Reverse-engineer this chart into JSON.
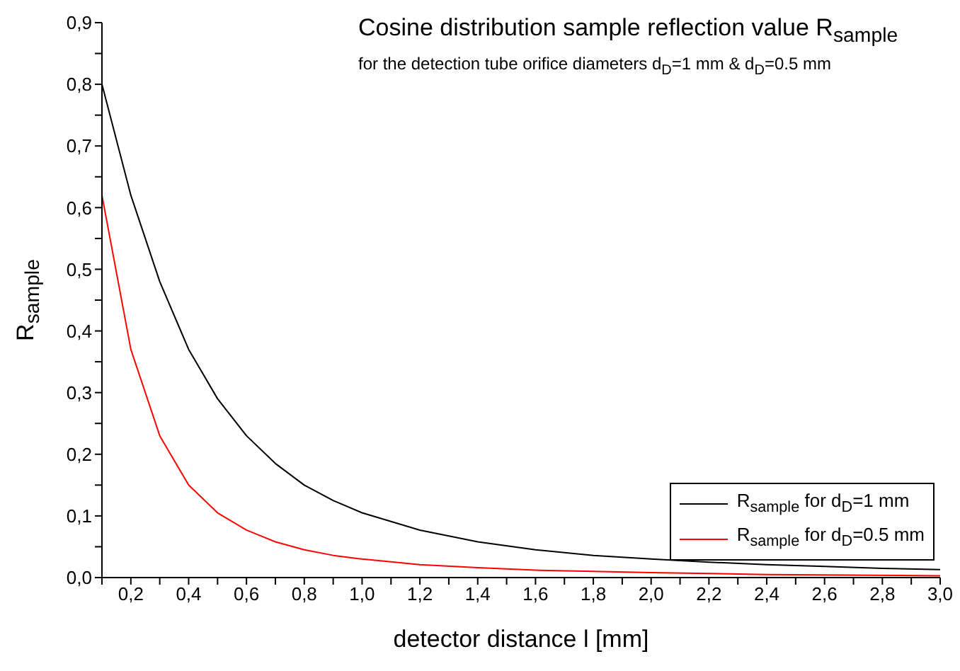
{
  "chart_data": {
    "type": "line",
    "title": "Cosine distribution sample reflection value R$_{sample}$",
    "subtitle": "for  the detection tube orifice diameters d$_{D}$=1 mm & d$_{D}$=0.5 mm",
    "xlabel": "detector distance l [mm]",
    "ylabel": "R$_{sample}$",
    "series": [
      {
        "name": "R$_{sample}$  for d$_{D}$=1 mm",
        "color": "#000000",
        "x": [
          0.1,
          0.2,
          0.3,
          0.4,
          0.5,
          0.6,
          0.7,
          0.8,
          0.9,
          1.0,
          1.2,
          1.4,
          1.6,
          1.8,
          2.0,
          2.2,
          2.4,
          2.6,
          2.8,
          3.0
        ],
        "values": [
          0.8,
          0.62,
          0.48,
          0.37,
          0.29,
          0.23,
          0.185,
          0.15,
          0.125,
          0.105,
          0.077,
          0.058,
          0.045,
          0.036,
          0.03,
          0.025,
          0.021,
          0.018,
          0.015,
          0.013
        ]
      },
      {
        "name": "R$_{sample}$  for d$_{D}$=0.5 mm",
        "color": "#ff0000",
        "x": [
          0.1,
          0.2,
          0.3,
          0.4,
          0.5,
          0.6,
          0.7,
          0.8,
          0.9,
          1.0,
          1.2,
          1.4,
          1.6,
          1.8,
          2.0,
          2.4,
          3.0
        ],
        "values": [
          0.62,
          0.37,
          0.23,
          0.15,
          0.105,
          0.077,
          0.058,
          0.045,
          0.036,
          0.03,
          0.021,
          0.016,
          0.012,
          0.01,
          0.008,
          0.005,
          0.003
        ]
      }
    ],
    "xlim": [
      0.1,
      3.0
    ],
    "xticks": [
      {
        "value": 0.1,
        "label": null
      },
      {
        "value": 0.2,
        "label": "0,2"
      },
      {
        "value": 0.3,
        "label": null
      },
      {
        "value": 0.4,
        "label": "0,4"
      },
      {
        "value": 0.5,
        "label": null
      },
      {
        "value": 0.6,
        "label": "0,6"
      },
      {
        "value": 0.7,
        "label": null
      },
      {
        "value": 0.8,
        "label": "0,8"
      },
      {
        "value": 0.9,
        "label": null
      },
      {
        "value": 1.0,
        "label": "1,0"
      },
      {
        "value": 1.1,
        "label": null
      },
      {
        "value": 1.2,
        "label": "1,2"
      },
      {
        "value": 1.3,
        "label": null
      },
      {
        "value": 1.4,
        "label": "1,4"
      },
      {
        "value": 1.5,
        "label": null
      },
      {
        "value": 1.6,
        "label": "1,6"
      },
      {
        "value": 1.7,
        "label": null
      },
      {
        "value": 1.8,
        "label": "1,8"
      },
      {
        "value": 1.9,
        "label": null
      },
      {
        "value": 2.0,
        "label": "2,0"
      },
      {
        "value": 2.1,
        "label": null
      },
      {
        "value": 2.2,
        "label": "2,2"
      },
      {
        "value": 2.3,
        "label": null
      },
      {
        "value": 2.4,
        "label": "2,4"
      },
      {
        "value": 2.5,
        "label": null
      },
      {
        "value": 2.6,
        "label": "2,6"
      },
      {
        "value": 2.7,
        "label": null
      },
      {
        "value": 2.8,
        "label": "2,8"
      },
      {
        "value": 2.9,
        "label": null
      },
      {
        "value": 3.0,
        "label": "3,0"
      }
    ],
    "ylim": [
      0,
      0.9
    ],
    "yticks": [
      {
        "value": 0,
        "label": "0,0"
      },
      {
        "value": 0.05,
        "label": null
      },
      {
        "value": 0.1,
        "label": "0,1"
      },
      {
        "value": 0.15,
        "label": null
      },
      {
        "value": 0.2,
        "label": "0,2"
      },
      {
        "value": 0.25,
        "label": null
      },
      {
        "value": 0.3,
        "label": "0,3"
      },
      {
        "value": 0.35,
        "label": null
      },
      {
        "value": 0.4,
        "label": "0,4"
      },
      {
        "value": 0.45,
        "label": null
      },
      {
        "value": 0.5,
        "label": "0,5"
      },
      {
        "value": 0.55,
        "label": null
      },
      {
        "value": 0.6,
        "label": "0,6"
      },
      {
        "value": 0.65,
        "label": null
      },
      {
        "value": 0.7,
        "label": "0,7"
      },
      {
        "value": 0.75,
        "label": null
      },
      {
        "value": 0.8,
        "label": "0,8"
      },
      {
        "value": 0.85,
        "label": null
      },
      {
        "value": 0.9,
        "label": "0,9"
      }
    ],
    "grid": false,
    "legend": "bottom right",
    "marker": "none",
    "line_style": "solid"
  }
}
